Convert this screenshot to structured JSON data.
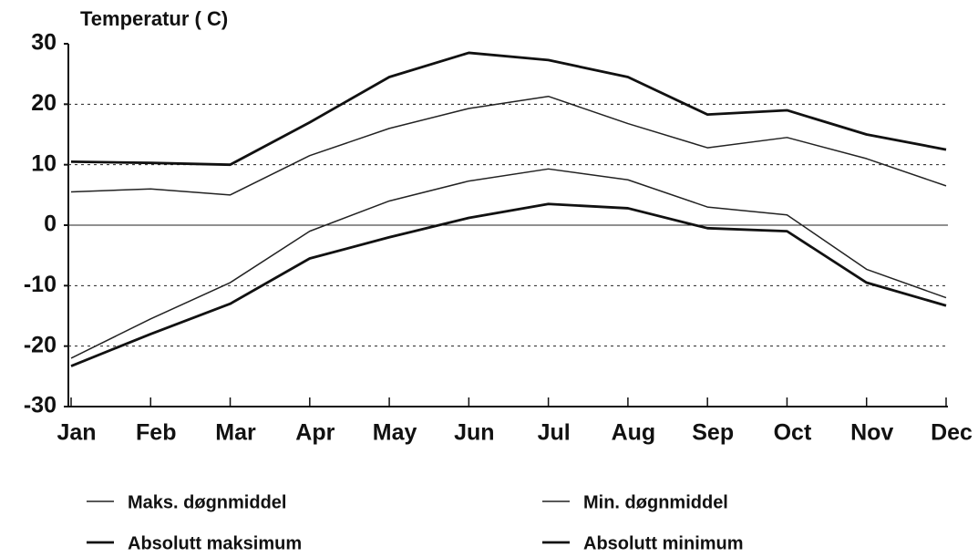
{
  "chart_data": {
    "type": "line",
    "title": "Temperatur ( C)",
    "categories": [
      "Jan",
      "Feb",
      "Mar",
      "Apr",
      "May",
      "Jun",
      "Jul",
      "Aug",
      "Sep",
      "Oct",
      "Nov",
      "Dec"
    ],
    "series": [
      {
        "name": "Maks. døgnmiddel",
        "color": "#222222",
        "linewidth": 1.5,
        "values": [
          5.5,
          6,
          5,
          11.5,
          16,
          19.3,
          21.3,
          16.8,
          12.8,
          14.5,
          11,
          6.5
        ]
      },
      {
        "name": "Min. døgnmiddel",
        "color": "#222222",
        "linewidth": 1.5,
        "values": [
          -22,
          -15.5,
          -9.5,
          -1,
          4,
          7.3,
          9.3,
          7.5,
          3,
          1.7,
          -7.3,
          -12
        ]
      },
      {
        "name": "Absolutt maksimum",
        "color": "#111111",
        "linewidth": 2.8,
        "values": [
          10.5,
          10.3,
          10,
          17,
          24.5,
          28.5,
          27.3,
          24.5,
          18.3,
          19,
          15,
          12.5
        ]
      },
      {
        "name": "Absolutt minimum",
        "color": "#111111",
        "linewidth": 2.8,
        "values": [
          -23.3,
          -18,
          -13,
          -5.5,
          -2,
          1.2,
          3.5,
          2.8,
          -0.5,
          -1,
          -9.5,
          -13.3
        ]
      }
    ],
    "ylim": [
      -30,
      30
    ],
    "yticks": [
      -30,
      -20,
      -10,
      0,
      10,
      20,
      30
    ],
    "grid": true
  }
}
